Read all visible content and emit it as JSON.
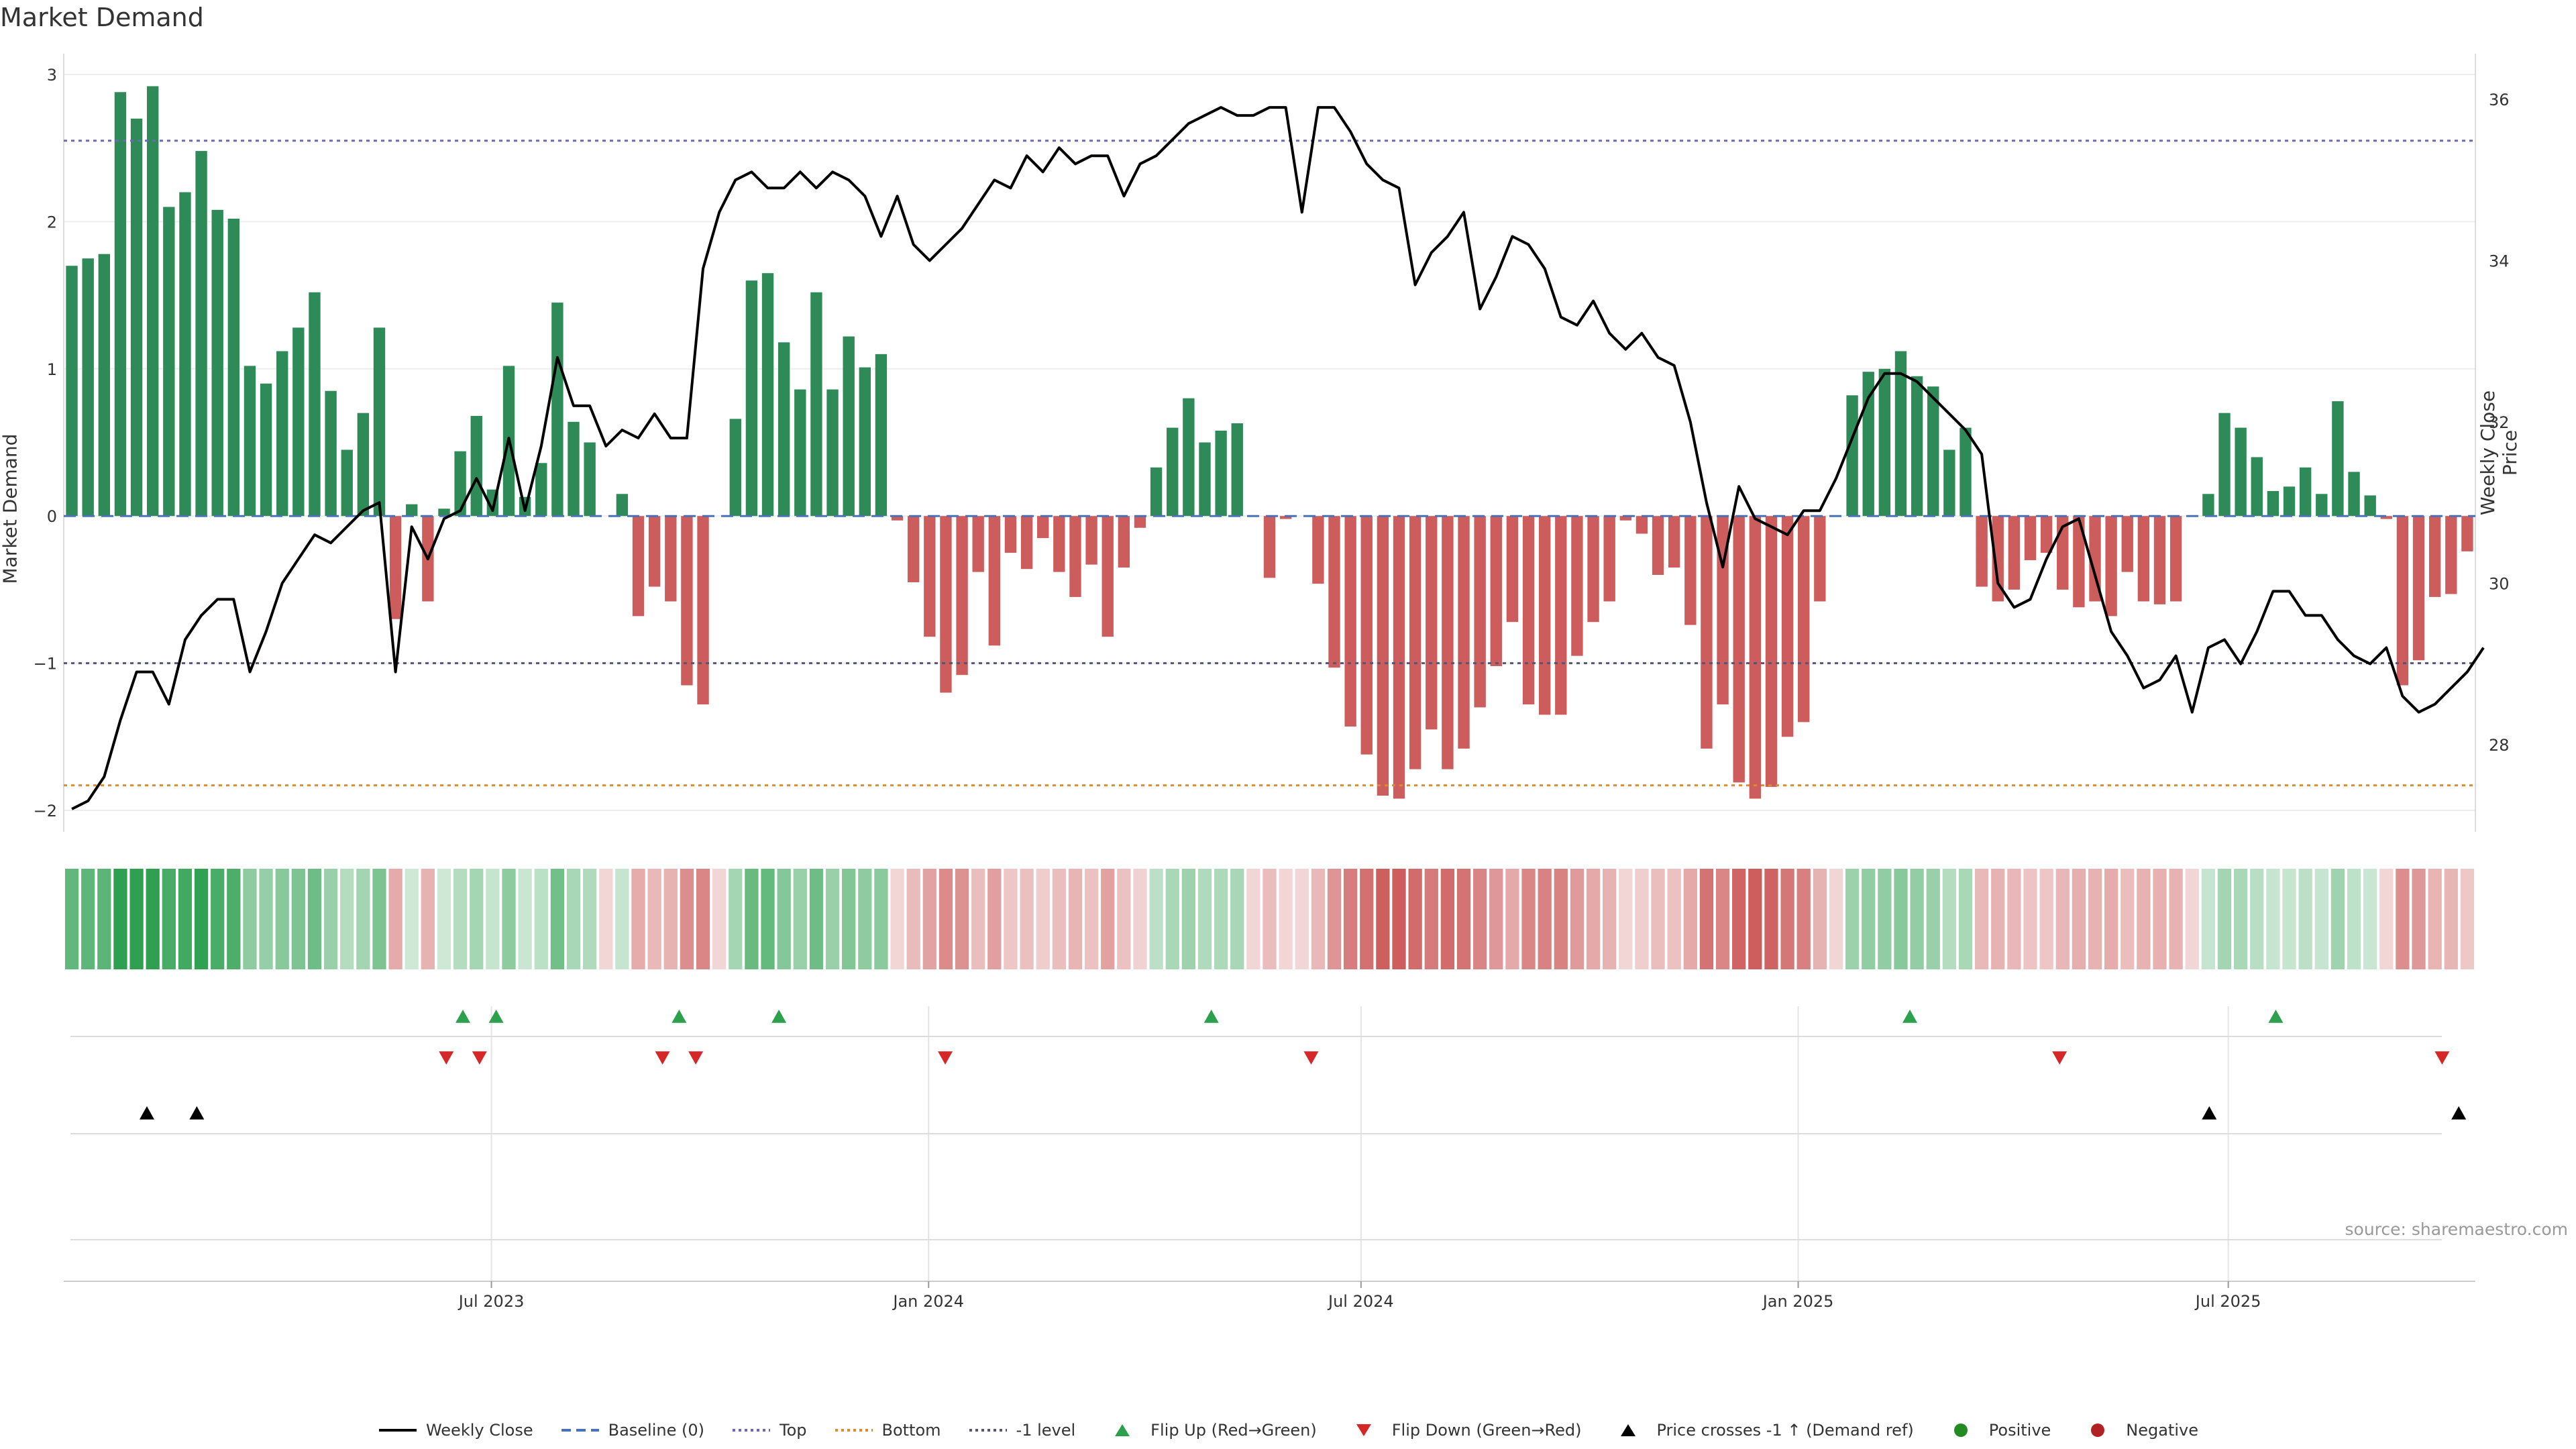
{
  "title": "Market Demand",
  "source": "source: sharemaestro.com",
  "axes": {
    "left_label": "Market Demand",
    "right_label": "Weekly Close Price",
    "left_ticks": [
      "3",
      "2",
      "1",
      "0",
      "−1",
      "−2"
    ],
    "right_ticks": [
      "36",
      "34",
      "32",
      "30",
      "28"
    ],
    "x_ticks": [
      "Jul 2023",
      "Jan 2024",
      "Jul 2024",
      "Jan 2025",
      "Jul 2025"
    ]
  },
  "legend": [
    {
      "label": "Weekly Close",
      "kind": "line",
      "color": "#000000"
    },
    {
      "label": "Baseline (0)",
      "kind": "dash",
      "color": "#4a72b8"
    },
    {
      "label": "Top",
      "kind": "dot",
      "color": "#6a6ab0"
    },
    {
      "label": "Bottom",
      "kind": "dot",
      "color": "#e08a2b"
    },
    {
      "label": "-1 level",
      "kind": "dot",
      "color": "#555577"
    },
    {
      "label": "Flip Up (Red→Green)",
      "kind": "tri-up",
      "color": "#2ca04c"
    },
    {
      "label": "Flip Down (Green→Red)",
      "kind": "tri-down",
      "color": "#d62728"
    },
    {
      "label": "Price crosses -1 ↑ (Demand ref)",
      "kind": "tri-up",
      "color": "#000000"
    },
    {
      "label": "Positive",
      "kind": "circle",
      "color": "#228b22"
    },
    {
      "label": "Negative",
      "kind": "circle",
      "color": "#b22222"
    }
  ],
  "colors": {
    "positive_bar": "#2e8b57",
    "negative_bar": "#cd5c5c",
    "price_line": "#000000",
    "top_line": "#6a6ab0",
    "bottom_line": "#e08a2b",
    "minus_one_line": "#555577",
    "baseline": "#4a72b8"
  },
  "chart_data": {
    "type": "bar",
    "x_range": [
      "2023-01-02",
      "2025-10-13"
    ],
    "ylim_left": [
      -2.1,
      3.05
    ],
    "ylim_right": [
      27.0,
      36.4
    ],
    "levels": {
      "top": 2.55,
      "bottom": -1.83,
      "minus_one": -1.0,
      "baseline": 0
    },
    "series": [
      {
        "name": "Market Demand",
        "values": [
          1.7,
          1.75,
          1.78,
          2.88,
          2.7,
          2.92,
          2.1,
          2.2,
          2.48,
          2.08,
          2.02,
          1.02,
          0.9,
          1.12,
          1.28,
          1.52,
          0.85,
          0.45,
          0.7,
          1.28,
          -0.7,
          0.08,
          -0.58,
          0.05,
          0.44,
          0.68,
          0.18,
          1.02,
          0.13,
          0.36,
          1.45,
          0.64,
          0.5,
          0.0,
          0.15,
          -0.68,
          -0.48,
          -0.58,
          -1.15,
          -1.28,
          0.0,
          0.66,
          1.6,
          1.65,
          1.18,
          0.86,
          1.52,
          0.86,
          1.22,
          1.01,
          1.1,
          -0.03,
          -0.45,
          -0.82,
          -1.2,
          -1.08,
          -0.38,
          -0.88,
          -0.25,
          -0.36,
          -0.15,
          -0.38,
          -0.55,
          -0.33,
          -0.82,
          -0.35,
          -0.08,
          0.33,
          0.6,
          0.8,
          0.5,
          0.58,
          0.63,
          0.0,
          -0.42,
          -0.02,
          0.0,
          -0.46,
          -1.03,
          -1.43,
          -1.62,
          -1.9,
          -1.92,
          -1.72,
          -1.45,
          -1.72,
          -1.58,
          -1.3,
          -1.02,
          -0.72,
          -1.28,
          -1.35,
          -1.35,
          -0.95,
          -0.72,
          -0.58,
          -0.03,
          -0.12,
          -0.4,
          -0.35,
          -0.74,
          -1.58,
          -1.28,
          -1.81,
          -1.92,
          -1.84,
          -1.5,
          -1.4,
          -0.58,
          0.0,
          0.82,
          0.98,
          1.0,
          1.12,
          0.95,
          0.88,
          0.45,
          0.6,
          -0.48,
          -0.58,
          -0.5,
          -0.3,
          -0.25,
          -0.5,
          -0.62,
          -0.58,
          -0.68,
          -0.38,
          -0.58,
          -0.6,
          -0.58,
          0.0,
          0.15,
          0.7,
          0.6,
          0.4,
          0.17,
          0.2,
          0.33,
          0.15,
          0.78,
          0.3,
          0.14,
          -0.02,
          -1.15,
          -0.98,
          -0.55,
          -0.53,
          -0.24
        ]
      },
      {
        "name": "Weekly Close",
        "values": [
          27.2,
          27.3,
          27.6,
          28.3,
          28.9,
          28.9,
          28.5,
          29.3,
          29.6,
          29.8,
          29.8,
          28.9,
          29.4,
          30.0,
          30.3,
          30.6,
          30.5,
          30.7,
          30.9,
          31.0,
          28.9,
          30.7,
          30.3,
          30.8,
          30.9,
          31.3,
          30.9,
          31.8,
          30.9,
          31.7,
          32.8,
          32.2,
          32.2,
          31.7,
          31.9,
          31.8,
          32.1,
          31.8,
          31.8,
          33.9,
          34.6,
          35.0,
          35.1,
          34.9,
          34.9,
          35.1,
          34.9,
          35.1,
          35.0,
          34.8,
          34.3,
          34.8,
          34.2,
          34.0,
          34.2,
          34.4,
          34.7,
          35.0,
          34.9,
          35.3,
          35.1,
          35.4,
          35.2,
          35.3,
          35.3,
          34.8,
          35.2,
          35.3,
          35.5,
          35.7,
          35.8,
          35.9,
          35.8,
          35.8,
          35.9,
          35.9,
          34.6,
          35.9,
          35.9,
          35.6,
          35.2,
          35.0,
          34.9,
          33.7,
          34.1,
          34.3,
          34.6,
          33.4,
          33.8,
          34.3,
          34.2,
          33.9,
          33.3,
          33.2,
          33.5,
          33.1,
          32.9,
          33.1,
          32.8,
          32.7,
          32.0,
          31.0,
          30.2,
          31.2,
          30.8,
          30.7,
          30.6,
          30.9,
          30.9,
          31.3,
          31.8,
          32.3,
          32.6,
          32.6,
          32.5,
          32.3,
          32.1,
          31.9,
          31.6,
          30.0,
          29.7,
          29.8,
          30.3,
          30.7,
          30.8,
          30.1,
          29.4,
          29.1,
          28.7,
          28.8,
          29.1,
          28.4,
          29.2,
          29.3,
          29.0,
          29.4,
          29.9,
          29.9,
          29.6,
          29.6,
          29.3,
          29.1,
          29.0,
          29.2,
          28.6,
          28.4,
          28.5,
          28.7,
          28.9,
          29.2
        ]
      }
    ],
    "signals": {
      "flip_up": [
        "2023-06-19",
        "2023-07-03",
        "2023-09-18",
        "2023-10-30",
        "2024-04-29",
        "2025-02-17",
        "2025-07-21"
      ],
      "flip_down": [
        "2023-06-12",
        "2023-06-26",
        "2023-09-11",
        "2023-09-25",
        "2024-01-08",
        "2024-06-10",
        "2025-04-21",
        "2025-09-29"
      ],
      "price_cross_up": [
        "2023-02-06",
        "2023-02-27",
        "2025-06-23",
        "2025-10-06"
      ]
    }
  }
}
